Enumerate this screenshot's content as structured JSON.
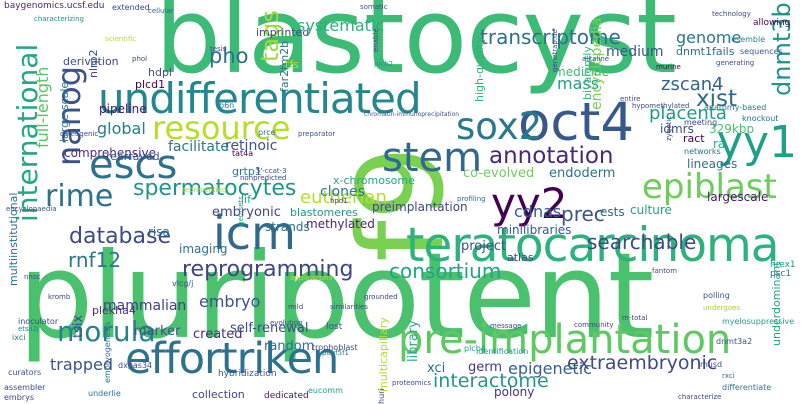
{
  "words": [
    {
      "text": "pluripotent",
      "color": "#4ac16d"
    },
    {
      "text": "blastocyst",
      "color": "#3bbb75"
    },
    {
      "text": "f9",
      "color": "#7ad151"
    },
    {
      "text": "teratocarcinoma",
      "color": "#2db27d"
    },
    {
      "text": "undifferentiated",
      "color": "#24878e"
    },
    {
      "text": "pre-implantation",
      "color": "#5ec962"
    },
    {
      "text": "effortriken",
      "color": "#2c718e"
    },
    {
      "text": "oct4",
      "color": "#38588c"
    },
    {
      "text": "sox2",
      "color": "#2a788e"
    },
    {
      "text": "icm",
      "color": "#31688e"
    },
    {
      "text": "yy2",
      "color": "#440154"
    },
    {
      "text": "yy1",
      "color": "#1f9e89"
    },
    {
      "text": "epiblast",
      "color": "#6ccd5a"
    },
    {
      "text": "escs",
      "color": "#2c728e"
    },
    {
      "text": "resource",
      "color": "#b5de2b"
    },
    {
      "text": "nanog",
      "color": "#3b528b"
    },
    {
      "text": "international",
      "color": "#22a884"
    },
    {
      "text": "stem",
      "color": "#31688e"
    },
    {
      "text": "rime",
      "color": "#2c728e"
    },
    {
      "text": "morula",
      "color": "#26828e"
    },
    {
      "text": "spermatocytes",
      "color": "#1f968b"
    },
    {
      "text": "database",
      "color": "#3e4989"
    },
    {
      "text": "reprogramming",
      "color": "#414487"
    },
    {
      "text": "annotation",
      "color": "#482878"
    },
    {
      "text": "searchable",
      "color": "#3e4a89"
    },
    {
      "text": "consortium",
      "color": "#20a486"
    },
    {
      "text": "xist",
      "color": "#31688e"
    },
    {
      "text": "zscan4",
      "color": "#33638d"
    },
    {
      "text": "placenta",
      "color": "#1f9a8a"
    },
    {
      "text": "tags",
      "color": "#a0da39"
    },
    {
      "text": "dnmt3b",
      "color": "#21918c"
    },
    {
      "text": "eutherian",
      "color": "#b5de2b"
    },
    {
      "text": "rnf12",
      "color": "#2a778e"
    },
    {
      "text": "pho",
      "color": "#2d708e"
    },
    {
      "text": "transcriptome",
      "color": "#2d708e"
    },
    {
      "text": "prec",
      "color": "#3a548c"
    },
    {
      "text": "interactome",
      "color": "#1f988b"
    },
    {
      "text": "extraembryonic",
      "color": "#3f4889"
    },
    {
      "text": "epigenetic",
      "color": "#355f8d"
    },
    {
      "text": "systematic",
      "color": "#2ab07f"
    },
    {
      "text": "mass",
      "color": "#1fa088"
    },
    {
      "text": "genome",
      "color": "#2a788e"
    },
    {
      "text": "full-length",
      "color": "#54c568"
    },
    {
      "text": "global",
      "color": "#287c8e"
    },
    {
      "text": "embryo",
      "color": "#3b528b"
    },
    {
      "text": "trapped",
      "color": "#3b528b"
    },
    {
      "text": "cdnas",
      "color": "#365c8d"
    },
    {
      "text": "retinoic",
      "color": "#3b528b"
    },
    {
      "text": "facilitate",
      "color": "#2a788e"
    },
    {
      "text": "clones",
      "color": "#297b8e"
    },
    {
      "text": "medium",
      "color": "#39568c"
    },
    {
      "text": "encyclopedia",
      "color": "#7ad151"
    },
    {
      "text": "mammalian",
      "color": "#433e85"
    },
    {
      "text": "embryonic",
      "color": "#3f4788"
    },
    {
      "text": "co-evolved",
      "color": "#6ece58"
    },
    {
      "text": "endoderm",
      "color": "#2c728e"
    },
    {
      "text": "project",
      "color": "#3b528b"
    },
    {
      "text": "self-renewal",
      "color": "#3c4f8a"
    },
    {
      "text": "created",
      "color": "#46307e"
    },
    {
      "text": "random",
      "color": "#2e6e8e"
    },
    {
      "text": "library",
      "color": "#25ac82"
    },
    {
      "text": "marker",
      "color": "#3b528b"
    },
    {
      "text": "germ",
      "color": "#453781"
    },
    {
      "text": "xci",
      "color": "#2e6d8e"
    },
    {
      "text": "tsix",
      "color": "#3e4989"
    },
    {
      "text": "methylated",
      "color": "#482475"
    },
    {
      "text": "strands",
      "color": "#2c718e"
    },
    {
      "text": "pipeline",
      "color": "#471365"
    },
    {
      "text": "comprehensive",
      "color": "#472c7a"
    },
    {
      "text": "imaging",
      "color": "#2c728e"
    },
    {
      "text": "risa",
      "color": "#2c718e"
    },
    {
      "text": "preimplantation",
      "color": "#3f4788"
    },
    {
      "text": "culture",
      "color": "#20a386"
    },
    {
      "text": "ests",
      "color": "#32658e"
    },
    {
      "text": "lineages",
      "color": "#2d708e"
    },
    {
      "text": "largescale",
      "color": "#48186a"
    },
    {
      "text": "minilibraries",
      "color": "#38588c"
    },
    {
      "text": "medicine",
      "color": "#3dbc74"
    },
    {
      "text": "idmrs",
      "color": "#3e4a89"
    },
    {
      "text": "ra",
      "color": "#29af7f"
    },
    {
      "text": "329kbp",
      "color": "#48c16e"
    },
    {
      "text": "polony",
      "color": "#46327e"
    },
    {
      "text": "blastomeres",
      "color": "#1f988b"
    },
    {
      "text": "dnmt1fails",
      "color": "#2d708e"
    },
    {
      "text": "multicapillary",
      "color": "#b5de2b"
    },
    {
      "text": "x-chromosome",
      "color": "#22a785"
    },
    {
      "text": "ract",
      "color": "#440154"
    },
    {
      "text": "high-quality",
      "color": "#2eb37c"
    },
    {
      "text": "grtp1",
      "color": "#2a788e"
    },
    {
      "text": "lif",
      "color": "#25ab82"
    },
    {
      "text": "plcd1",
      "color": "#440154"
    },
    {
      "text": "hdpl",
      "color": "#3c4f8a"
    },
    {
      "text": "bivalently",
      "color": "#35b779"
    },
    {
      "text": "rearrayed",
      "color": "#3b528b"
    },
    {
      "text": "large-scale",
      "color": "#2a788e"
    },
    {
      "text": "plekha4",
      "color": "#46307e"
    },
    {
      "text": "multiinstitutional",
      "color": "#2c718e"
    },
    {
      "text": "nlrp2",
      "color": "#3e4989"
    },
    {
      "text": "far2tm2b",
      "color": "#2d708e"
    },
    {
      "text": "tfs",
      "color": "#b8de29"
    },
    {
      "text": "imprinted",
      "color": "#3f4788"
    },
    {
      "text": "derivation",
      "color": "#3e4a89"
    },
    {
      "text": "baygenomics.ucsf.edu",
      "color": "#482677"
    },
    {
      "text": "characterizing",
      "color": "#1f948c"
    },
    {
      "text": "cellular",
      "color": "#31688e"
    },
    {
      "text": "scientific",
      "color": "#b5de2b"
    },
    {
      "text": "allowing",
      "color": "#440154"
    },
    {
      "text": "resemble",
      "color": "#25848e"
    },
    {
      "text": "sequences",
      "color": "#39568c"
    },
    {
      "text": "anatomy-based",
      "color": "#2a788e"
    },
    {
      "text": "knockout",
      "color": "#2d708e"
    },
    {
      "text": "meeting",
      "color": "#3e4989"
    },
    {
      "text": "networks",
      "color": "#2c728e"
    },
    {
      "text": "hypomethylated",
      "color": "#3c4f8a"
    },
    {
      "text": "murine",
      "color": "#440154"
    },
    {
      "text": "profiling",
      "color": "#2d708e"
    },
    {
      "text": "hrex1",
      "color": "#1f988b"
    },
    {
      "text": "psc1",
      "color": "#2c718e"
    },
    {
      "text": "underdominant",
      "color": "#20a486"
    },
    {
      "text": "undergoes",
      "color": "#9fda3a"
    },
    {
      "text": "myelosuppressive",
      "color": "#1f9e89"
    },
    {
      "text": "dnmt3a2",
      "color": "#3b528b"
    },
    {
      "text": "plcb4",
      "color": "#20a386"
    },
    {
      "text": "plcb2",
      "color": "#21918c"
    },
    {
      "text": "polling",
      "color": "#3b528b"
    },
    {
      "text": "identification",
      "color": "#1f9e89"
    },
    {
      "text": "musd",
      "color": "#3b528b"
    },
    {
      "text": "rxci",
      "color": "#2d708e"
    },
    {
      "text": "differentiate",
      "color": "#2a788e"
    },
    {
      "text": "characterize",
      "color": "#3e4989"
    },
    {
      "text": "pouf5f1",
      "color": "#2a788e"
    },
    {
      "text": "trophoblast",
      "color": "#3e4989"
    },
    {
      "text": "hybridization",
      "color": "#38588c"
    },
    {
      "text": "collection",
      "color": "#414487"
    },
    {
      "text": "dedicated",
      "color": "#471365"
    },
    {
      "text": "eucomm",
      "color": "#20a386"
    },
    {
      "text": "underlie",
      "color": "#2c728e"
    },
    {
      "text": "embryogenesis",
      "color": "#2d708e"
    },
    {
      "text": "dxpas34",
      "color": "#3e4989"
    },
    {
      "text": "inoculator",
      "color": "#3f4788"
    },
    {
      "text": "curators",
      "color": "#3b528b"
    },
    {
      "text": "assembler",
      "color": "#3e4a89"
    },
    {
      "text": "embrys",
      "color": "#3e4989"
    },
    {
      "text": "ixci",
      "color": "#2c718e"
    },
    {
      "text": "etsii2j",
      "color": "#24878e"
    },
    {
      "text": "vlcg/j",
      "color": "#3b528b"
    },
    {
      "text": "applications",
      "color": "#b5de2b"
    },
    {
      "text": "nonpredicted",
      "color": "#3f4788"
    },
    {
      "text": "hpd1",
      "color": "#3e4989"
    },
    {
      "text": "representing",
      "color": "#a0da39"
    },
    {
      "text": "encyclopaedia",
      "color": "#3b528b"
    },
    {
      "text": "tat4a",
      "color": "#440154"
    },
    {
      "text": "b6n",
      "color": "#2c718e"
    },
    {
      "text": "prce",
      "color": "#2c718e"
    },
    {
      "text": "preparator",
      "color": "#3b528b"
    },
    {
      "text": "gemsets",
      "color": "#20a386"
    },
    {
      "text": "osteogenic",
      "color": "#3e4989"
    },
    {
      "text": "phol",
      "color": "#3e4989"
    },
    {
      "text": "extended",
      "color": "#3e4989"
    },
    {
      "text": "somatic",
      "color": "#3b528b"
    },
    {
      "text": "technology",
      "color": "#3e4989"
    },
    {
      "text": "generating",
      "color": "#3e4989"
    },
    {
      "text": "genetrap.de",
      "color": "#3e4989"
    },
    {
      "text": "alkaline",
      "color": "#3b528b"
    },
    {
      "text": "entire",
      "color": "#3e4989"
    },
    {
      "text": "fantom",
      "color": "#3e4989"
    },
    {
      "text": "zygotic",
      "color": "#3e4989"
    },
    {
      "text": "m-total",
      "color": "#3e4989"
    },
    {
      "text": "lost",
      "color": "#3b528b"
    },
    {
      "text": "grounded",
      "color": "#3e4989"
    },
    {
      "text": "community",
      "color": "#3e4989"
    },
    {
      "text": "5'-ccat-3",
      "color": "#3e4989"
    },
    {
      "text": "chromatin-immunoprecipitation",
      "color": "#3b528b"
    },
    {
      "text": "enable",
      "color": "#3e4989"
    },
    {
      "text": "huri",
      "color": "#3e4989"
    },
    {
      "text": "message",
      "color": "#3e4989"
    },
    {
      "text": "proteomics",
      "color": "#3b528b"
    },
    {
      "text": "evolution",
      "color": "#3e4989"
    },
    {
      "text": "similarities",
      "color": "#3e4989"
    },
    {
      "text": "atlas",
      "color": "#3e4a89"
    },
    {
      "text": "nnsc",
      "color": "#3e4989"
    },
    {
      "text": "tesis",
      "color": "#3e4989"
    },
    {
      "text": "kromb",
      "color": "#3e4989"
    },
    {
      "text": "mild",
      "color": "#3e4989"
    }
  ]
}
